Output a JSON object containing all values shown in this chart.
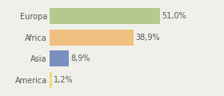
{
  "categories": [
    "Europa",
    "Africa",
    "Asia",
    "America"
  ],
  "values": [
    51.0,
    38.9,
    8.9,
    1.2
  ],
  "labels": [
    "51,0%",
    "38,9%",
    "8,9%",
    "1,2%"
  ],
  "bar_colors": [
    "#b5c98e",
    "#f0c080",
    "#7b8fc0",
    "#f5d87a"
  ],
  "background_color": "#f0f0eb",
  "text_color": "#555555",
  "label_fontsize": 7.0,
  "tick_fontsize": 7.0,
  "xlim": [
    0,
    68
  ],
  "bar_height": 0.75
}
